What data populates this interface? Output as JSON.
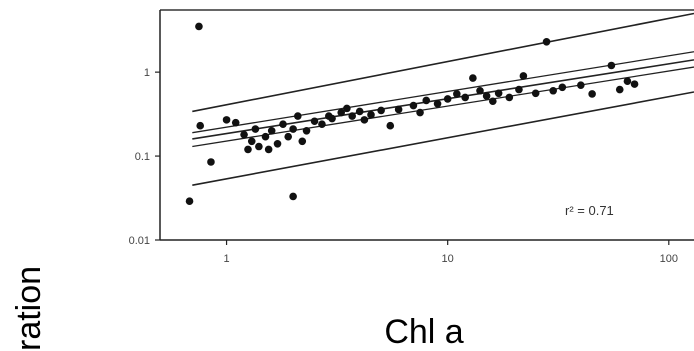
{
  "chart_data": {
    "type": "scatter",
    "title": "",
    "xlabel": "Chl a",
    "ylabel_visible_fragment": "ration",
    "x_scale": "log",
    "y_scale": "log",
    "xlim": [
      0.5,
      130
    ],
    "ylim": [
      0.01,
      5.5
    ],
    "x_ticks": [
      1,
      10,
      100
    ],
    "x_tick_labels": [
      "1",
      "10",
      "100"
    ],
    "y_ticks": [
      0.01,
      0.1,
      1
    ],
    "y_tick_labels": [
      "0.01",
      "0.1",
      "1"
    ],
    "annotation": "r² = 0.71",
    "points": [
      {
        "x": 0.75,
        "y": 3.5
      },
      {
        "x": 0.68,
        "y": 0.029
      },
      {
        "x": 0.76,
        "y": 0.23
      },
      {
        "x": 0.85,
        "y": 0.085
      },
      {
        "x": 2.0,
        "y": 0.033
      },
      {
        "x": 1.0,
        "y": 0.27
      },
      {
        "x": 1.1,
        "y": 0.25
      },
      {
        "x": 1.2,
        "y": 0.18
      },
      {
        "x": 1.25,
        "y": 0.12
      },
      {
        "x": 1.3,
        "y": 0.15
      },
      {
        "x": 1.35,
        "y": 0.21
      },
      {
        "x": 1.4,
        "y": 0.13
      },
      {
        "x": 1.5,
        "y": 0.17
      },
      {
        "x": 1.55,
        "y": 0.12
      },
      {
        "x": 1.6,
        "y": 0.2
      },
      {
        "x": 1.7,
        "y": 0.14
      },
      {
        "x": 1.8,
        "y": 0.24
      },
      {
        "x": 1.9,
        "y": 0.17
      },
      {
        "x": 2.0,
        "y": 0.21
      },
      {
        "x": 2.1,
        "y": 0.3
      },
      {
        "x": 2.2,
        "y": 0.15
      },
      {
        "x": 2.3,
        "y": 0.2
      },
      {
        "x": 2.5,
        "y": 0.26
      },
      {
        "x": 2.7,
        "y": 0.24
      },
      {
        "x": 2.9,
        "y": 0.3
      },
      {
        "x": 3.0,
        "y": 0.28
      },
      {
        "x": 3.3,
        "y": 0.33
      },
      {
        "x": 3.5,
        "y": 0.37
      },
      {
        "x": 3.7,
        "y": 0.3
      },
      {
        "x": 4.0,
        "y": 0.34
      },
      {
        "x": 4.2,
        "y": 0.27
      },
      {
        "x": 4.5,
        "y": 0.31
      },
      {
        "x": 5.0,
        "y": 0.35
      },
      {
        "x": 5.5,
        "y": 0.23
      },
      {
        "x": 6.0,
        "y": 0.36
      },
      {
        "x": 7.0,
        "y": 0.4
      },
      {
        "x": 7.5,
        "y": 0.33
      },
      {
        "x": 8.0,
        "y": 0.46
      },
      {
        "x": 9.0,
        "y": 0.42
      },
      {
        "x": 10.0,
        "y": 0.48
      },
      {
        "x": 11.0,
        "y": 0.55
      },
      {
        "x": 12.0,
        "y": 0.5
      },
      {
        "x": 13.0,
        "y": 0.85
      },
      {
        "x": 14.0,
        "y": 0.6
      },
      {
        "x": 15.0,
        "y": 0.52
      },
      {
        "x": 16.0,
        "y": 0.45
      },
      {
        "x": 17.0,
        "y": 0.56
      },
      {
        "x": 19.0,
        "y": 0.5
      },
      {
        "x": 21.0,
        "y": 0.62
      },
      {
        "x": 22.0,
        "y": 0.9
      },
      {
        "x": 25.0,
        "y": 0.56
      },
      {
        "x": 28.0,
        "y": 2.3
      },
      {
        "x": 30.0,
        "y": 0.6
      },
      {
        "x": 33.0,
        "y": 0.66
      },
      {
        "x": 40.0,
        "y": 0.7
      },
      {
        "x": 45.0,
        "y": 0.55
      },
      {
        "x": 55.0,
        "y": 1.2
      },
      {
        "x": 60.0,
        "y": 0.62
      },
      {
        "x": 65.0,
        "y": 0.78
      },
      {
        "x": 70.0,
        "y": 0.72
      }
    ],
    "regression": {
      "x": [
        0.7,
        130
      ],
      "y": [
        0.16,
        1.4
      ]
    },
    "confidence_band": {
      "x": [
        0.7,
        130
      ],
      "lower": [
        0.13,
        1.15
      ],
      "upper": [
        0.19,
        1.75
      ]
    },
    "prediction_band": {
      "x": [
        0.7,
        130
      ],
      "lower": [
        0.045,
        0.58
      ],
      "upper": [
        0.34,
        5.0
      ]
    },
    "grid": false
  }
}
